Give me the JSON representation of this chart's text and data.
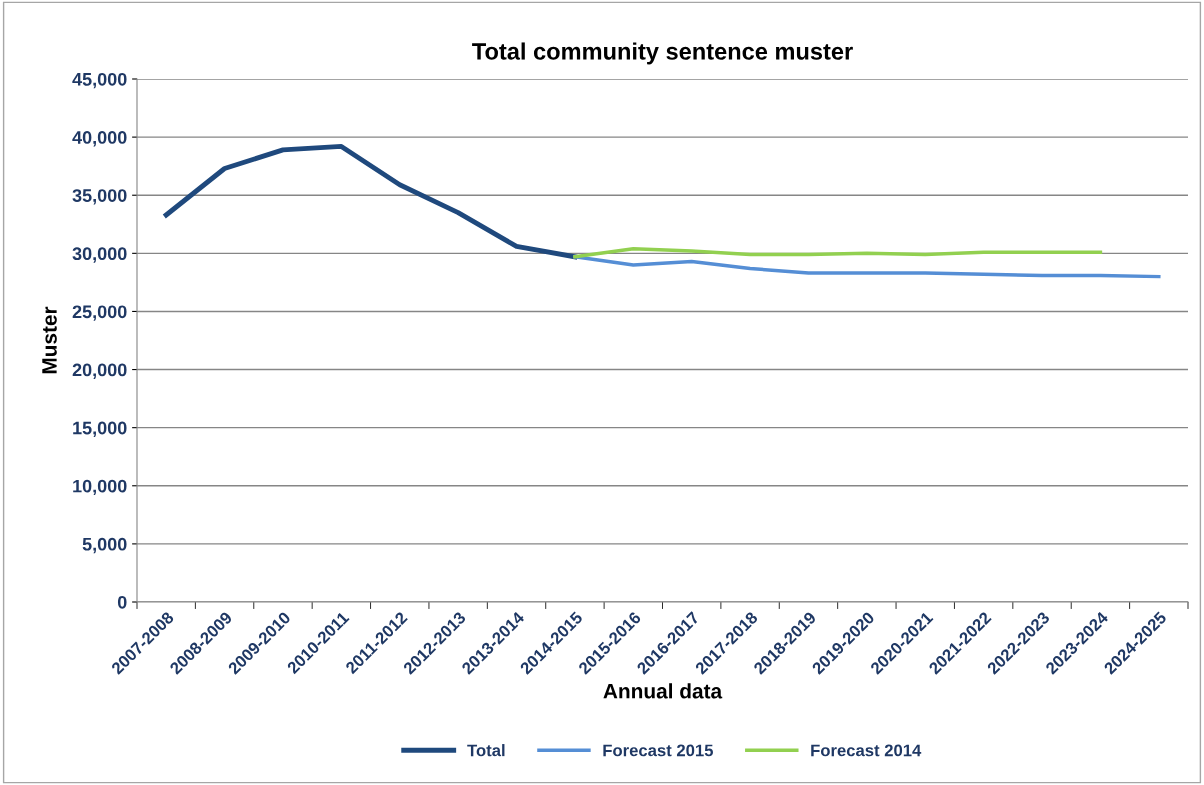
{
  "chart_data": {
    "type": "line",
    "title": "Total community sentence muster",
    "xlabel": "Annual data",
    "ylabel": "Muster",
    "categories": [
      "2007-2008",
      "2008-2009",
      "2009-2010",
      "2010-2011",
      "2011-2012",
      "2012-2013",
      "2013-2014",
      "2014-2015",
      "2015-2016",
      "2016-2017",
      "2017-2018",
      "2018-2019",
      "2019-2020",
      "2020-2021",
      "2021-2022",
      "2022-2023",
      "2023-2024",
      "2024-2025"
    ],
    "series": [
      {
        "name": "Total",
        "color": "#1f497d",
        "values": [
          33300,
          37300,
          38900,
          39200,
          35900,
          33500,
          30600,
          29700,
          null,
          null,
          null,
          null,
          null,
          null,
          null,
          null,
          null,
          null
        ]
      },
      {
        "name": "Forecast 2015",
        "color": "#558ed5",
        "values": [
          null,
          null,
          null,
          null,
          null,
          null,
          null,
          29700,
          29000,
          29300,
          28700,
          28300,
          28300,
          28300,
          28200,
          28100,
          28100,
          28000
        ]
      },
      {
        "name": "Forecast 2014",
        "color": "#92d050",
        "values": [
          null,
          null,
          null,
          null,
          null,
          null,
          null,
          29700,
          30400,
          30200,
          29900,
          29900,
          30000,
          29900,
          30100,
          30100,
          30100,
          null
        ]
      }
    ],
    "ylim": [
      0,
      45000
    ],
    "yticks": [
      {
        "value": 0,
        "label": "0"
      },
      {
        "value": 5000,
        "label": "5,000"
      },
      {
        "value": 10000,
        "label": "10,000"
      },
      {
        "value": 15000,
        "label": "15,000"
      },
      {
        "value": 20000,
        "label": "20,000"
      },
      {
        "value": 25000,
        "label": "25,000"
      },
      {
        "value": 30000,
        "label": "30,000"
      },
      {
        "value": 35000,
        "label": "35,000"
      },
      {
        "value": 40000,
        "label": "40,000"
      },
      {
        "value": 45000,
        "label": "45,000"
      }
    ],
    "grid": "y",
    "legend": "bottom",
    "marker": "none",
    "line_style": "solid"
  }
}
